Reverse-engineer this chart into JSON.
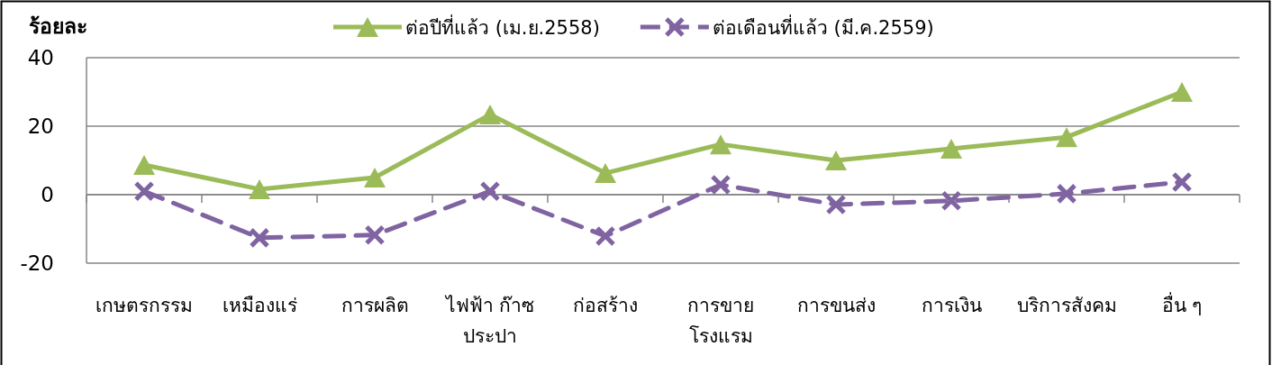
{
  "chart_data": {
    "type": "line",
    "ylabel": "ร้อยละ",
    "categories": [
      "เกษตรกรรม",
      "เหมืองแร่",
      "การผลิต",
      "ไฟฟ้า ก๊าซ ประปา",
      "ก่อสร้าง",
      "การขาย โรงแรม",
      "การขนส่ง",
      "การเงิน",
      "บริการสังคม",
      "อื่น ๆ"
    ],
    "series": [
      {
        "name": "ต่อปีที่แล้ว (เม.ย.2558)",
        "color": "#9bbb59",
        "marker": "triangle",
        "line_style": "solid",
        "values": [
          8.7,
          1.6,
          5,
          23.4,
          6.3,
          14.7,
          10,
          13.4,
          16.8,
          30
        ]
      },
      {
        "name": "ต่อเดือนที่แล้ว (มี.ค.2559)",
        "color": "#8064a2",
        "marker": "cross",
        "line_style": "dashed",
        "values": [
          1,
          -12.6,
          -11.8,
          1,
          -12.1,
          2.9,
          -2.9,
          -1.8,
          0.3,
          3.7
        ]
      }
    ],
    "ylim": [
      -20,
      40
    ],
    "yticks": [
      -20,
      0,
      20,
      40
    ],
    "grid": "y",
    "legend": "top"
  }
}
